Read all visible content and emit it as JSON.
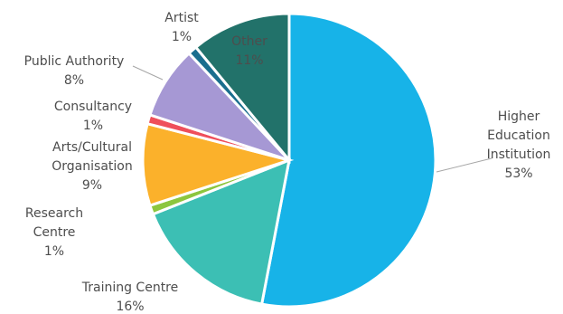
{
  "chart_data": {
    "type": "pie",
    "slices": [
      {
        "label": [
          "Higher",
          "Education",
          "Institution"
        ],
        "pct_text": "53%",
        "value": 53,
        "color": "#17b3e8"
      },
      {
        "label": [
          "Training Centre"
        ],
        "pct_text": "16%",
        "value": 16,
        "color": "#3cbfb4"
      },
      {
        "label": [
          "Research",
          "Centre"
        ],
        "pct_text": "1%",
        "value": 1,
        "color": "#8cc63e"
      },
      {
        "label": [
          "Arts/Cultural",
          "Organisation"
        ],
        "pct_text": "9%",
        "value": 9,
        "color": "#fbb12b"
      },
      {
        "label": [
          "Consultancy"
        ],
        "pct_text": "1%",
        "value": 1,
        "color": "#ef4f5b"
      },
      {
        "label": [
          "Public Authority"
        ],
        "pct_text": "8%",
        "value": 8,
        "color": "#a698d4"
      },
      {
        "label": [
          "Artist"
        ],
        "pct_text": "1%",
        "value": 1,
        "color": "#1a6e8e"
      },
      {
        "label": [
          "Other"
        ],
        "pct_text": "11%",
        "value": 11,
        "color": "#22726a"
      }
    ],
    "legend": "none",
    "start_angle": "12 o'clock, clockwise"
  }
}
